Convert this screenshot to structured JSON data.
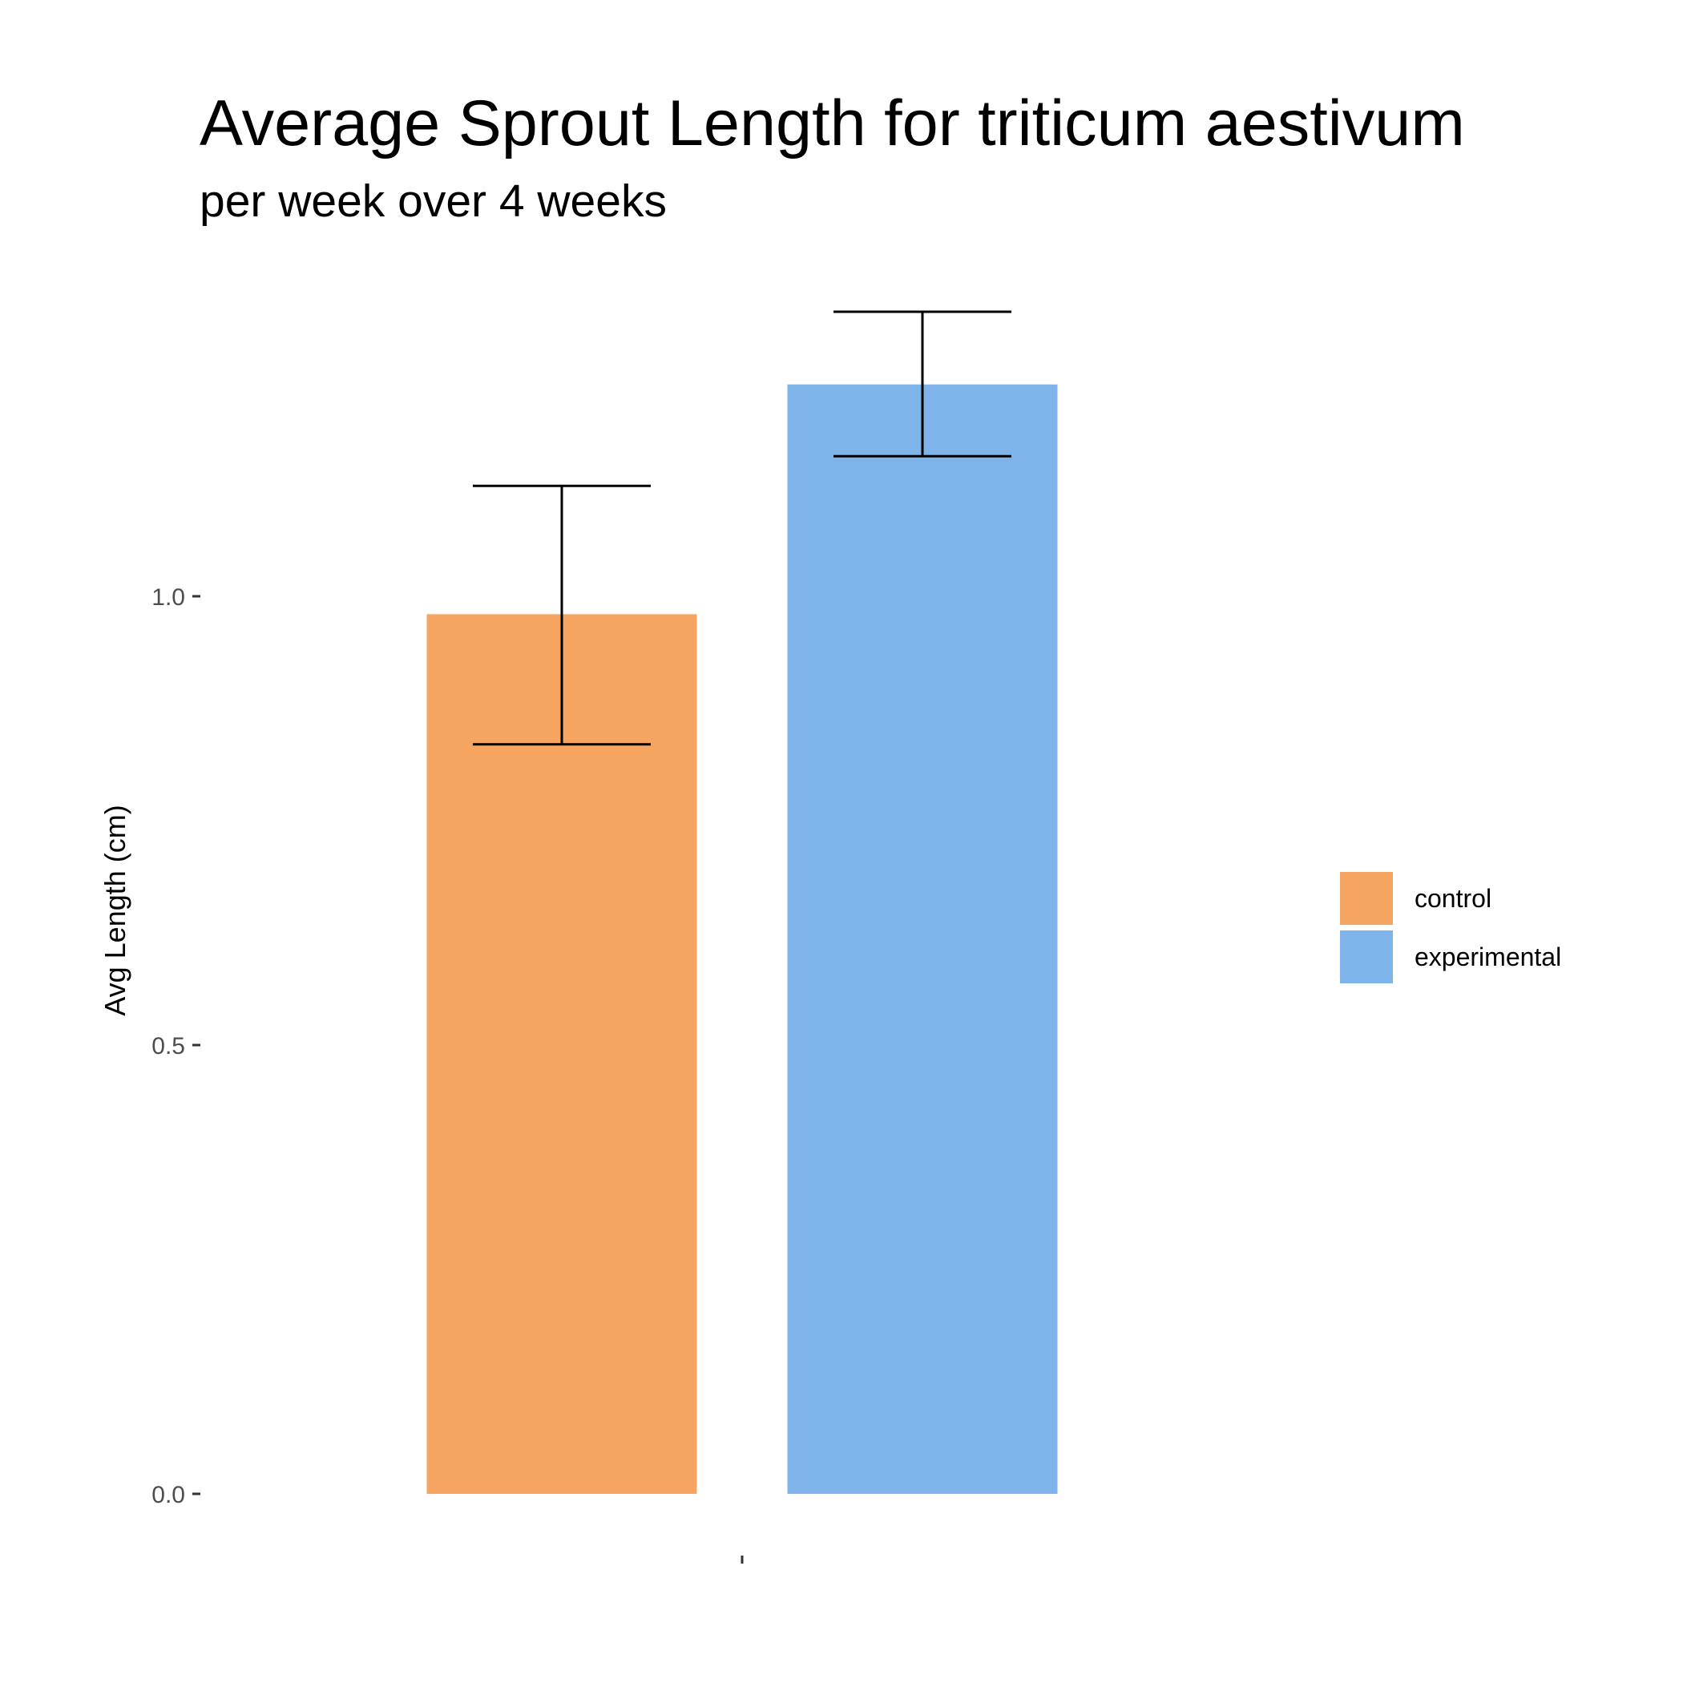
{
  "chart_data": {
    "type": "bar",
    "title": "Average Sprout Length for triticum aestivum",
    "subtitle": "per week over 4 weeks",
    "xlabel": "",
    "ylabel": "Avg Length (cm)",
    "categories": [
      ""
    ],
    "ylim": [
      0,
      1.32
    ],
    "yticks": [
      0.0,
      0.5,
      1.0
    ],
    "ytick_labels": [
      "0.0",
      "0.5",
      "1.0"
    ],
    "grid": false,
    "legend_position": "right",
    "series": [
      {
        "name": "control",
        "color": "#F5A55F",
        "values": [
          0.98
        ],
        "error_low": [
          0.835
        ],
        "error_high": [
          1.123
        ]
      },
      {
        "name": "experimental",
        "color": "#7EB4EA",
        "values": [
          1.236
        ],
        "error_low": [
          1.156
        ],
        "error_high": [
          1.317
        ]
      }
    ]
  }
}
